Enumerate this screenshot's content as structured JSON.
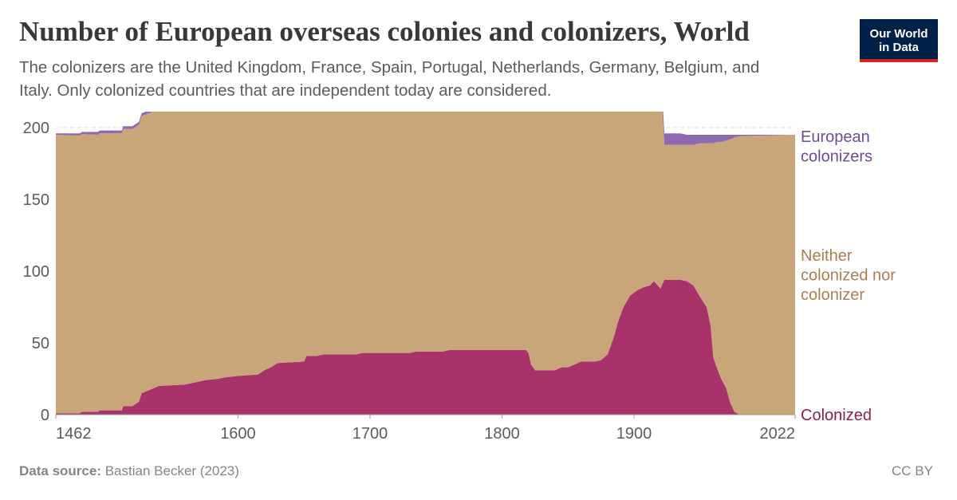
{
  "header": {
    "title": "Number of European overseas colonies and colonizers, World",
    "subtitle": "The colonizers are the United Kingdom, France, Spain, Portugal, Netherlands, Germany, Belgium, and Italy. Only colonized countries that are independent today are considered."
  },
  "logo": {
    "line1": "Our World",
    "line2": "in Data"
  },
  "footer": {
    "source_label": "Data source:",
    "source_value": "Bastian Becker (2023)",
    "license": "CC BY"
  },
  "colors": {
    "colonized": "#a8336a",
    "neither": "#c9a57a",
    "colonizers": "#8e6bb0",
    "colonized_label": "#8c1f52",
    "neither_label": "#a9804f",
    "colonizers_label": "#6e4a99",
    "axis_text": "#5b5b5b",
    "grid": "#dddddd"
  },
  "chart_data": {
    "type": "area",
    "stacked": true,
    "title": "Number of European overseas colonies and colonizers, World",
    "xlim": [
      1462,
      2022
    ],
    "ylim": [
      0,
      200
    ],
    "x_ticks": [
      1462,
      1600,
      1700,
      1800,
      1900,
      2022
    ],
    "y_ticks": [
      0,
      50,
      100,
      150,
      200
    ],
    "grid": "horizontal-dashed",
    "legend": "right-inline",
    "series": [
      {
        "name": "Colonized",
        "points": [
          [
            1462,
            1
          ],
          [
            1480,
            1
          ],
          [
            1482,
            2
          ],
          [
            1494,
            2
          ],
          [
            1495,
            3
          ],
          [
            1512,
            3
          ],
          [
            1513,
            6
          ],
          [
            1520,
            6
          ],
          [
            1525,
            9
          ],
          [
            1527,
            15
          ],
          [
            1535,
            18
          ],
          [
            1540,
            20
          ],
          [
            1560,
            21
          ],
          [
            1565,
            22
          ],
          [
            1575,
            24
          ],
          [
            1585,
            25
          ],
          [
            1590,
            26
          ],
          [
            1600,
            27
          ],
          [
            1615,
            28
          ],
          [
            1620,
            31
          ],
          [
            1625,
            33
          ],
          [
            1630,
            36
          ],
          [
            1650,
            37
          ],
          [
            1652,
            41
          ],
          [
            1660,
            41
          ],
          [
            1665,
            42
          ],
          [
            1690,
            42
          ],
          [
            1694,
            43
          ],
          [
            1730,
            43
          ],
          [
            1735,
            44
          ],
          [
            1755,
            44
          ],
          [
            1760,
            45
          ],
          [
            1780,
            45
          ],
          [
            1790,
            45
          ],
          [
            1800,
            45
          ],
          [
            1815,
            45
          ],
          [
            1818,
            45
          ],
          [
            1820,
            43
          ],
          [
            1822,
            35
          ],
          [
            1825,
            31
          ],
          [
            1840,
            31
          ],
          [
            1845,
            33
          ],
          [
            1850,
            33
          ],
          [
            1855,
            35
          ],
          [
            1860,
            37
          ],
          [
            1870,
            37
          ],
          [
            1875,
            38
          ],
          [
            1880,
            42
          ],
          [
            1885,
            55
          ],
          [
            1888,
            65
          ],
          [
            1892,
            75
          ],
          [
            1897,
            83
          ],
          [
            1903,
            87
          ],
          [
            1908,
            89
          ],
          [
            1912,
            90
          ],
          [
            1915,
            93
          ],
          [
            1920,
            88
          ],
          [
            1923,
            94
          ],
          [
            1935,
            94
          ],
          [
            1940,
            93
          ],
          [
            1945,
            90
          ],
          [
            1950,
            82
          ],
          [
            1955,
            75
          ],
          [
            1958,
            62
          ],
          [
            1960,
            40
          ],
          [
            1963,
            32
          ],
          [
            1966,
            25
          ],
          [
            1970,
            18
          ],
          [
            1973,
            8
          ],
          [
            1976,
            2
          ],
          [
            1980,
            0
          ],
          [
            2022,
            0
          ]
        ]
      },
      {
        "name": "Neither colonized nor colonizer",
        "points": [
          [
            1462,
            194
          ],
          [
            1495,
            193
          ],
          [
            1545,
            193
          ],
          [
            1580,
            194
          ],
          [
            1600,
            191
          ],
          [
            1630,
            190
          ],
          [
            1700,
            190
          ],
          [
            1800,
            190
          ],
          [
            1820,
            189
          ],
          [
            1822,
            192
          ],
          [
            1850,
            190
          ],
          [
            1880,
            187
          ],
          [
            1885,
            177
          ],
          [
            1888,
            173
          ],
          [
            1892,
            164
          ],
          [
            1897,
            155
          ],
          [
            1903,
            149
          ],
          [
            1908,
            147
          ],
          [
            1912,
            146
          ],
          [
            1915,
            143
          ],
          [
            1920,
            148
          ],
          [
            1923,
            94
          ],
          [
            1935,
            94
          ],
          [
            1940,
            95
          ],
          [
            1945,
            98
          ],
          [
            1950,
            107
          ],
          [
            1955,
            114
          ],
          [
            1958,
            127
          ],
          [
            1960,
            149
          ],
          [
            1963,
            158
          ],
          [
            1966,
            165
          ],
          [
            1970,
            173
          ],
          [
            1973,
            184
          ],
          [
            1976,
            191
          ],
          [
            1980,
            194
          ],
          [
            2022,
            195
          ]
        ]
      },
      {
        "name": "European colonizers",
        "points": [
          [
            1462,
            1
          ],
          [
            1495,
            2
          ],
          [
            1545,
            2
          ],
          [
            1580,
            2
          ],
          [
            1600,
            4
          ],
          [
            1630,
            5
          ],
          [
            1700,
            5
          ],
          [
            1800,
            5
          ],
          [
            1820,
            5
          ],
          [
            1822,
            3
          ],
          [
            1850,
            5
          ],
          [
            1880,
            5
          ],
          [
            1885,
            6
          ],
          [
            1888,
            6
          ],
          [
            1892,
            7
          ],
          [
            1897,
            7
          ],
          [
            1903,
            8
          ],
          [
            1908,
            8
          ],
          [
            1912,
            8
          ],
          [
            1915,
            8
          ],
          [
            1920,
            8
          ],
          [
            1923,
            8
          ],
          [
            1935,
            8
          ],
          [
            1940,
            7
          ],
          [
            1945,
            7
          ],
          [
            1950,
            6
          ],
          [
            1955,
            6
          ],
          [
            1958,
            6
          ],
          [
            1960,
            6
          ],
          [
            1963,
            5
          ],
          [
            1966,
            5
          ],
          [
            1970,
            4
          ],
          [
            1973,
            3
          ],
          [
            1976,
            2
          ],
          [
            1980,
            1
          ],
          [
            2022,
            0
          ]
        ]
      }
    ],
    "labels": [
      {
        "series": "European colonizers",
        "lines": [
          "European",
          "colonizers"
        ]
      },
      {
        "series": "Neither colonized nor colonizer",
        "lines": [
          "Neither",
          "colonized nor",
          "colonizer"
        ]
      },
      {
        "series": "Colonized",
        "lines": [
          "Colonized"
        ]
      }
    ]
  }
}
